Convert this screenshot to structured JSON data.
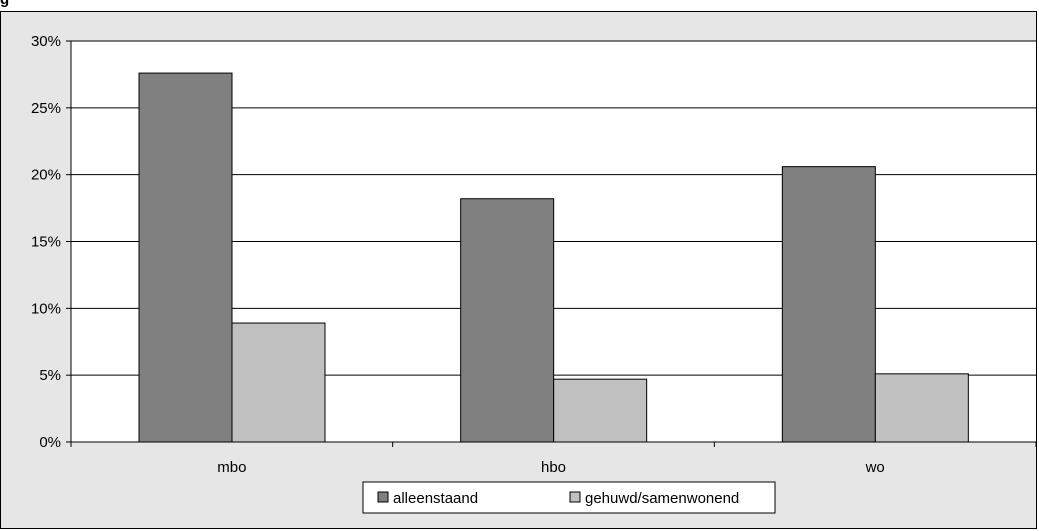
{
  "caption_fragment": "g",
  "chart_data": {
    "type": "bar",
    "categories": [
      "mbo",
      "hbo",
      "wo"
    ],
    "series": [
      {
        "name": "alleenstaand",
        "values": [
          27.6,
          18.2,
          20.6
        ],
        "color": "#808080"
      },
      {
        "name": "gehuwd/samenwonend",
        "values": [
          8.9,
          4.7,
          5.1
        ],
        "color": "#c0c0c0"
      }
    ],
    "ylim": [
      0,
      30
    ],
    "yticks": [
      0,
      5,
      10,
      15,
      20,
      25,
      30
    ],
    "ytick_labels": [
      "0%",
      "5%",
      "10%",
      "15%",
      "20%",
      "25%",
      "30%"
    ],
    "grid": true,
    "legend_position": "bottom",
    "plot_background": "#ffffff",
    "chart_background": "#e6e6e6"
  }
}
